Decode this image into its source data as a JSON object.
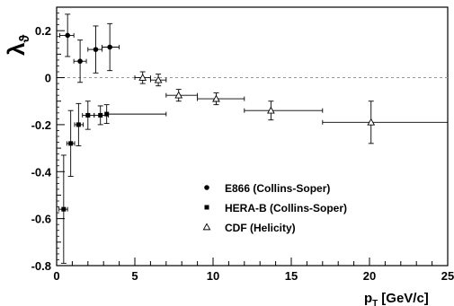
{
  "chart_data": {
    "type": "scatter",
    "xlabel": "p",
    "xlabel_sub": "T",
    "xlabel_unit": "[GeV/c]",
    "ylabel": "λ",
    "ylabel_sub": "ϑ",
    "xlim": [
      0,
      25
    ],
    "ylim": [
      -0.8,
      0.3
    ],
    "x_ticks": [
      0,
      5,
      10,
      15,
      20,
      25
    ],
    "y_ticks": [
      -0.8,
      -0.6,
      -0.4,
      -0.2,
      0,
      0.2
    ],
    "y_tick_labels": [
      "-0.8",
      "-0.6",
      "-0.4",
      "-0.2",
      "0",
      "0.2"
    ],
    "x_tick_labels": [
      "0",
      "5",
      "10",
      "15",
      "20",
      "25"
    ],
    "reference_line": {
      "y": 0,
      "style": "dashed"
    },
    "legend_position": "lower-center",
    "series": [
      {
        "name": "E866 (Collins-Soper)",
        "marker": "circle",
        "points": [
          {
            "x": 0.7,
            "y": 0.18,
            "xerr": [
              0.5,
              0.4
            ],
            "yerr": 0.09
          },
          {
            "x": 1.5,
            "y": 0.07,
            "xerr": [
              0.4,
              0.4
            ],
            "yerr": 0.09
          },
          {
            "x": 2.5,
            "y": 0.12,
            "xerr": [
              0.5,
              0.4
            ],
            "yerr": 0.1
          },
          {
            "x": 3.4,
            "y": 0.13,
            "xerr": [
              0.5,
              0.6
            ],
            "yerr": 0.1
          }
        ]
      },
      {
        "name": "HERA-B (Collins-Soper)",
        "marker": "square",
        "points": [
          {
            "x": 0.45,
            "y": -0.56,
            "xerr": [
              0.3,
              0.25
            ],
            "yerr": 0.23
          },
          {
            "x": 0.9,
            "y": -0.28,
            "xerr": [
              0.25,
              0.25
            ],
            "yerr": 0.14
          },
          {
            "x": 1.4,
            "y": -0.2,
            "xerr": [
              0.25,
              0.3
            ],
            "yerr": 0.09
          },
          {
            "x": 2.0,
            "y": -0.16,
            "xerr": [
              0.35,
              0.4
            ],
            "yerr": 0.06
          },
          {
            "x": 2.8,
            "y": -0.16,
            "xerr": [
              0.4,
              0.5
            ],
            "yerr": 0.04
          },
          {
            "x": 3.2,
            "y": -0.155,
            "xerr": [
              0.0,
              3.8
            ],
            "yerr": 0.04
          }
        ]
      },
      {
        "name": "CDF (Helicity)",
        "marker": "triangle-open",
        "points": [
          {
            "x": 5.5,
            "y": 0.0,
            "xerr": [
              0.5,
              0.5
            ],
            "yerr": 0.025
          },
          {
            "x": 6.5,
            "y": -0.01,
            "xerr": [
              0.5,
              0.5
            ],
            "yerr": 0.025
          },
          {
            "x": 7.8,
            "y": -0.075,
            "xerr": [
              0.8,
              1.2
            ],
            "yerr": 0.025
          },
          {
            "x": 10.2,
            "y": -0.09,
            "xerr": [
              1.2,
              1.8
            ],
            "yerr": 0.025
          },
          {
            "x": 13.7,
            "y": -0.14,
            "xerr": [
              1.7,
              3.3
            ],
            "yerr": 0.04
          },
          {
            "x": 20.1,
            "y": -0.19,
            "xerr": [
              3.1,
              4.9
            ],
            "yerr": 0.09
          }
        ]
      }
    ]
  }
}
